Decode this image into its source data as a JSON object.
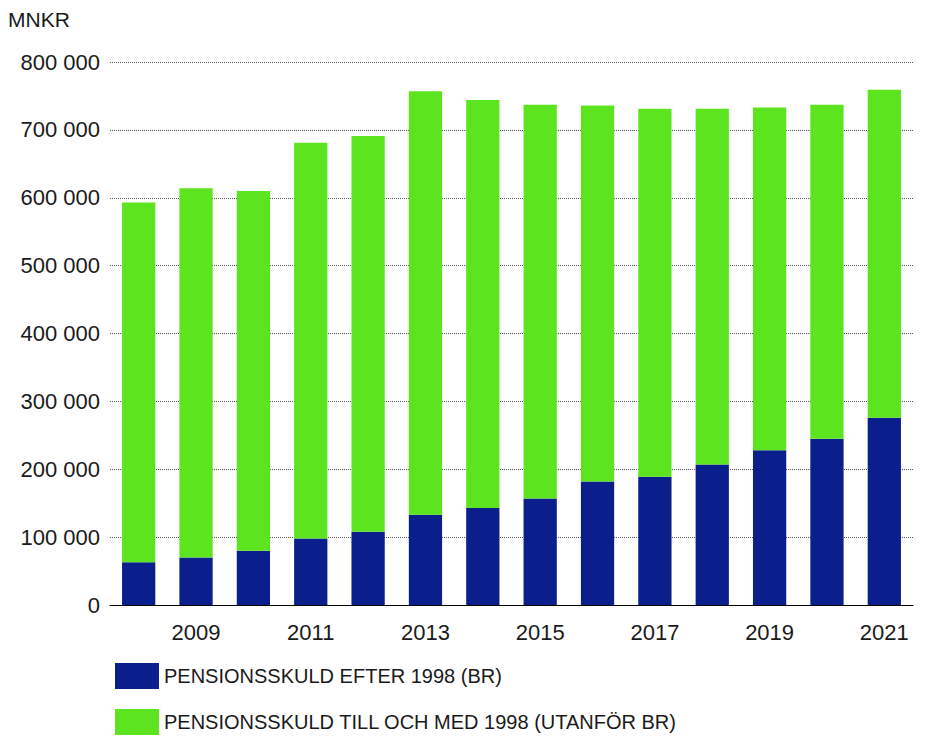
{
  "chart_data": {
    "type": "bar",
    "y_label": "MNKR",
    "categories": [
      null,
      "2009",
      null,
      "2011",
      null,
      "2013",
      null,
      "2015",
      null,
      "2017",
      null,
      "2019",
      null,
      "2021"
    ],
    "series": [
      {
        "name": "PENSIONSSKULD EFTER 1998 (BR)",
        "color": "#0b1f8c",
        "values": [
          63000,
          70000,
          80000,
          98000,
          108000,
          133000,
          143000,
          157000,
          182000,
          189000,
          207000,
          228000,
          245000,
          276000
        ]
      },
      {
        "name": "PENSIONSSKULD TILL OCH MED 1998 (UTANFÖR BR)",
        "color": "#5ce51f",
        "values": [
          530000,
          544000,
          530000,
          583000,
          583000,
          624000,
          601000,
          580000,
          554000,
          542000,
          524000,
          505000,
          492000,
          483000
        ]
      }
    ],
    "stacked": true,
    "ylim": [
      0,
      800000
    ],
    "yticks": [
      0,
      {
        "value": 100000,
        "label": "100 000"
      },
      {
        "value": 200000,
        "label": "200 000"
      },
      {
        "value": 300000,
        "label": "300 000"
      },
      {
        "value": 400000,
        "label": "400 000"
      },
      {
        "value": 500000,
        "label": "500 000"
      },
      {
        "value": 600000,
        "label": "600 000"
      },
      {
        "value": 700000,
        "label": "700 000"
      },
      {
        "value": 800000,
        "label": "800 000"
      }
    ],
    "grid": true,
    "legend": "bottom"
  }
}
